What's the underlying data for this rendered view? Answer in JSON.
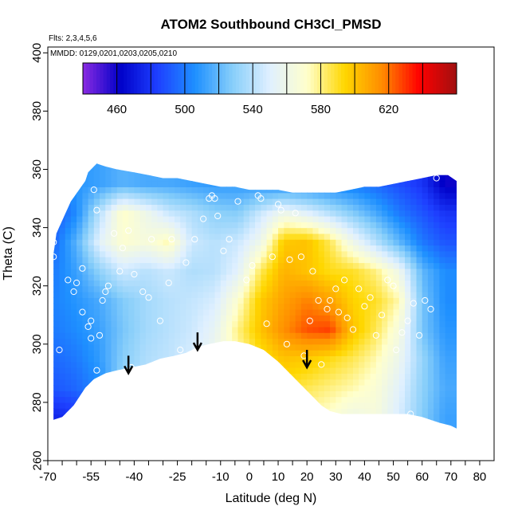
{
  "chart_data": {
    "type": "heatmap",
    "title": "ATOM2 Southbound CH3Cl_PMSD",
    "annotation_lines": [
      "Flts: 2,3,4,5,6",
      "MMDD: 0129,0201,0203,0205,0210"
    ],
    "xlabel": "Latitude (deg N)",
    "ylabel": "Theta (C)",
    "xlim": [
      -70,
      85
    ],
    "ylim": [
      260,
      402
    ],
    "x_tick_values": [
      -70,
      -65,
      -60,
      -55,
      -50,
      -45,
      -40,
      -35,
      -30,
      -25,
      -20,
      -15,
      -10,
      -5,
      0,
      5,
      10,
      15,
      20,
      25,
      30,
      35,
      40,
      45,
      50,
      55,
      60,
      65,
      70,
      75,
      80
    ],
    "x_tick_labels": [
      "-70",
      "-55",
      "-40",
      "-25",
      "-10",
      "0",
      "10",
      "20",
      "30",
      "40",
      "50",
      "60",
      "70",
      "80"
    ],
    "x_tick_label_values": [
      -70,
      -55,
      -40,
      -25,
      -10,
      0,
      10,
      20,
      30,
      40,
      50,
      60,
      70,
      80
    ],
    "y_ticks": [
      260,
      280,
      300,
      320,
      340,
      360,
      380,
      400
    ],
    "y_tick_labels": [
      "260",
      "280",
      "300",
      "320",
      "340",
      "360",
      "380",
      "400"
    ],
    "colorbar": {
      "range": [
        440,
        660
      ],
      "tick_values": [
        460,
        500,
        540,
        580,
        620
      ],
      "tick_labels": [
        "460",
        "500",
        "540",
        "580",
        "620"
      ],
      "divider_values": [
        460,
        480,
        500,
        520,
        540,
        560,
        580,
        600,
        620,
        640
      ],
      "colors": [
        "#8a2be2",
        "#0000c8",
        "#1e40ff",
        "#1e90ff",
        "#87cefa",
        "#e0f0ff",
        "#ffffcc",
        "#ffd700",
        "#ff8c00",
        "#ff0000",
        "#a01010"
      ]
    },
    "field_outline_lat": [
      -68,
      -67,
      -62,
      -57,
      -56,
      -54,
      -53,
      -50,
      -46,
      -40,
      -35,
      -30,
      -25,
      -20,
      -15,
      -10,
      -5,
      0,
      5,
      10,
      15,
      20,
      25,
      30,
      35,
      40,
      45,
      50,
      55,
      60,
      65,
      69,
      72,
      72,
      70,
      66,
      60,
      55,
      50,
      45,
      40,
      35,
      32,
      28,
      25,
      22,
      18,
      14,
      10,
      5,
      0,
      -5,
      -9,
      -14,
      -18,
      -22,
      -26,
      -31,
      -36,
      -41,
      -46,
      -50,
      -54,
      -57,
      -61,
      -65,
      -68
    ],
    "field_outline_theta": [
      331,
      338,
      349,
      356,
      359,
      361,
      362,
      361,
      360,
      359,
      358,
      357,
      357,
      356,
      355,
      354,
      354,
      353,
      353,
      353,
      352,
      352,
      352,
      352,
      353,
      354,
      354,
      355,
      356,
      357,
      358,
      358,
      356,
      271,
      272,
      273,
      275,
      276,
      276,
      276,
      276,
      276,
      276,
      277,
      279,
      282,
      286,
      290,
      294,
      298,
      300,
      301,
      301,
      300,
      299,
      297,
      296,
      295,
      293,
      292,
      291,
      290,
      288,
      285,
      279,
      275,
      274
    ],
    "value_grid": {
      "lat": [
        -68,
        -60,
        -52,
        -44,
        -36,
        -28,
        -20,
        -12,
        -4,
        4,
        12,
        20,
        28,
        36,
        44,
        52,
        60,
        68
      ],
      "theta": [
        275,
        285,
        295,
        305,
        315,
        325,
        335,
        345,
        355
      ],
      "values": [
        [
          475,
          480,
          495,
          530,
          538,
          540,
          542,
          545,
          550,
          560,
          575,
          575,
          570,
          560,
          565,
          548,
          528,
          512
        ],
        [
          490,
          495,
          505,
          532,
          540,
          542,
          545,
          550,
          560,
          575,
          590,
          585,
          580,
          575,
          568,
          552,
          530,
          515
        ],
        [
          495,
          500,
          510,
          528,
          538,
          542,
          548,
          560,
          575,
          590,
          600,
          598,
          592,
          585,
          575,
          558,
          532,
          512
        ],
        [
          500,
          505,
          512,
          525,
          535,
          540,
          545,
          555,
          580,
          600,
          615,
          625,
          628,
          600,
          585,
          565,
          525,
          508
        ],
        [
          502,
          508,
          515,
          527,
          535,
          540,
          543,
          548,
          570,
          598,
          610,
          618,
          610,
          595,
          590,
          575,
          525,
          505
        ],
        [
          500,
          512,
          530,
          545,
          540,
          545,
          538,
          540,
          552,
          585,
          605,
          600,
          592,
          590,
          580,
          560,
          520,
          505
        ],
        [
          495,
          518,
          552,
          570,
          565,
          575,
          545,
          540,
          545,
          560,
          598,
          600,
          585,
          560,
          540,
          520,
          500,
          490
        ],
        [
          490,
          505,
          540,
          572,
          560,
          545,
          538,
          530,
          528,
          545,
          560,
          552,
          540,
          528,
          515,
          500,
          490,
          480
        ],
        [
          500,
          508,
          512,
          518,
          515,
          515,
          512,
          510,
          510,
          508,
          505,
          504,
          502,
          500,
          495,
          488,
          480,
          460
        ]
      ]
    },
    "obs_points_lat": [
      -68,
      -68,
      -66,
      -63,
      -61,
      -58,
      -56,
      -55,
      -55,
      -54,
      -53,
      -53,
      -51,
      -49,
      -47,
      -45,
      -44,
      -41,
      -40,
      -37,
      -34,
      -31,
      -28,
      -27,
      -24,
      -22,
      -19,
      -16,
      -14,
      -13,
      -12,
      -11,
      -9,
      -7,
      -4,
      -1,
      1,
      3,
      4,
      6,
      8,
      10,
      11,
      13,
      14,
      16,
      18,
      19,
      21,
      22,
      24,
      25,
      27,
      28,
      30,
      31,
      33,
      34,
      36,
      38,
      40,
      42,
      44,
      46,
      48,
      50,
      51,
      53,
      55,
      56,
      57,
      59,
      61,
      63,
      65,
      -58,
      -50,
      -42,
      -35,
      -60,
      -52
    ],
    "obs_points_theta": [
      330,
      335,
      298,
      322,
      318,
      311,
      306,
      302,
      308,
      353,
      346,
      291,
      315,
      320,
      338,
      325,
      333,
      292,
      324,
      318,
      336,
      308,
      321,
      336,
      298,
      328,
      336,
      343,
      350,
      351,
      350,
      344,
      332,
      336,
      349,
      322,
      327,
      351,
      350,
      307,
      330,
      348,
      346,
      300,
      329,
      345,
      330,
      296,
      308,
      325,
      315,
      293,
      312,
      315,
      319,
      311,
      322,
      309,
      305,
      319,
      313,
      316,
      303,
      310,
      322,
      320,
      298,
      304,
      308,
      276,
      314,
      303,
      315,
      312,
      357,
      326,
      318,
      339,
      316,
      321,
      303
    ],
    "arrow_lats": [
      -42,
      -18,
      20
    ],
    "arrow_tip_thetas": [
      290,
      298,
      292
    ]
  }
}
